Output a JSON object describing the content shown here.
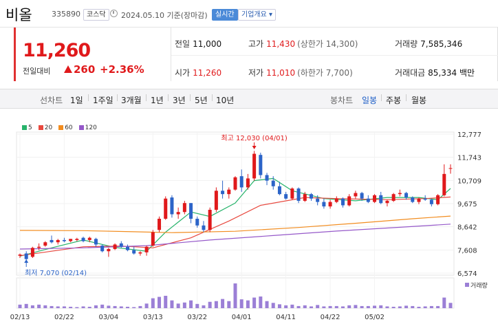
{
  "header": {
    "name": "비올",
    "code": "335890",
    "market": "코스닥",
    "date_text": "2024.05.10 기준(장마감)",
    "realtime": "실시간",
    "company": "기업개요"
  },
  "price": {
    "current": "11,260",
    "change_label": "전일대비",
    "change": "260",
    "change_pct": "+2.36%"
  },
  "stats": {
    "prev_close": {
      "label": "전일",
      "value": "11,000"
    },
    "high": {
      "label": "고가",
      "value": "11,430",
      "sub": "(상한가 14,300)"
    },
    "volume": {
      "label": "거래량",
      "value": "7,585,346"
    },
    "open": {
      "label": "시가",
      "value": "11,260"
    },
    "low": {
      "label": "저가",
      "value": "11,010",
      "sub": "(하한가 7,700)"
    },
    "amount": {
      "label": "거래대금",
      "value": "85,334 백만"
    }
  },
  "toolbar": {
    "line_label": "선차트",
    "line_items": [
      "1일",
      "1주일",
      "3개월",
      "1년",
      "3년",
      "5년",
      "10년"
    ],
    "candle_label": "봉차트",
    "candle_items": [
      "일봉",
      "주봉",
      "월봉"
    ],
    "selected": "일봉"
  },
  "colors": {
    "up": "#e0191b",
    "down": "#2c64c8",
    "ma5": "#27b36b",
    "ma20": "#e8483e",
    "ma60": "#f28c1e",
    "ma120": "#9558c9",
    "volume": "#9b7fd6"
  },
  "chart_data": {
    "type": "candlestick",
    "moving_averages": [
      {
        "name": "5"
      },
      {
        "name": "20"
      },
      {
        "name": "60"
      },
      {
        "name": "120"
      }
    ],
    "y_ticks": [
      "12,777",
      "11,743",
      "10,709",
      "9,675",
      "8,642",
      "7,608",
      "6,574"
    ],
    "x_ticks": [
      "02/13",
      "02/22",
      "03/04",
      "03/13",
      "03/22",
      "04/01",
      "04/11",
      "04/22",
      "05/02"
    ],
    "ylim": [
      6574,
      12777
    ],
    "annotations": {
      "high": "최고 12,030 (04/01)",
      "low": "최저 7,070 (02/14)"
    },
    "volume_label": "거래량",
    "candles": [
      [
        7350,
        7450,
        7250,
        7400
      ],
      [
        7450,
        7550,
        7070,
        7200
      ],
      [
        7300,
        7750,
        7250,
        7700
      ],
      [
        7700,
        7900,
        7600,
        7750
      ],
      [
        7800,
        8000,
        7750,
        7950
      ],
      [
        8050,
        8250,
        7900,
        7950
      ],
      [
        7950,
        8100,
        7850,
        8050
      ],
      [
        8050,
        8150,
        7950,
        8000
      ],
      [
        8000,
        8100,
        7950,
        8100
      ],
      [
        8050,
        8150,
        8000,
        8100
      ],
      [
        8150,
        8200,
        7950,
        8000
      ],
      [
        8050,
        8200,
        7950,
        8150
      ],
      [
        8100,
        8150,
        7750,
        7850
      ],
      [
        7800,
        7850,
        7500,
        7550
      ],
      [
        7550,
        7700,
        7300,
        7650
      ],
      [
        7650,
        7900,
        7600,
        7850
      ],
      [
        7900,
        8000,
        7700,
        7750
      ],
      [
        7750,
        7850,
        7550,
        7600
      ],
      [
        7600,
        7750,
        7400,
        7450
      ],
      [
        7450,
        7550,
        7350,
        7500
      ],
      [
        7500,
        7800,
        7350,
        7750
      ],
      [
        7800,
        8500,
        7750,
        8400
      ],
      [
        8500,
        9100,
        8400,
        9000
      ],
      [
        9000,
        10000,
        8950,
        9900
      ],
      [
        9950,
        10050,
        9050,
        9200
      ],
      [
        9200,
        9500,
        9000,
        9300
      ],
      [
        9300,
        9800,
        9200,
        9700
      ],
      [
        9700,
        9700,
        8800,
        9000
      ],
      [
        9000,
        9100,
        8600,
        8700
      ],
      [
        8700,
        8900,
        8400,
        8500
      ],
      [
        8500,
        9500,
        8400,
        9400
      ],
      [
        9400,
        10400,
        9300,
        10250
      ],
      [
        10250,
        10700,
        9900,
        10100
      ],
      [
        10100,
        10400,
        9900,
        10300
      ],
      [
        10300,
        10900,
        10250,
        10850
      ],
      [
        10900,
        11200,
        10200,
        10400
      ],
      [
        10400,
        11000,
        10300,
        10800
      ],
      [
        10800,
        12030,
        10700,
        11900
      ],
      [
        11850,
        11950,
        10800,
        10950
      ],
      [
        10950,
        11050,
        10500,
        10700
      ],
      [
        10700,
        10900,
        10300,
        10450
      ],
      [
        10450,
        10650,
        10050,
        10100
      ],
      [
        10100,
        10200,
        9850,
        9900
      ],
      [
        9900,
        10400,
        9850,
        10350
      ],
      [
        10350,
        10400,
        9700,
        9800
      ],
      [
        9800,
        10200,
        9750,
        10100
      ],
      [
        10100,
        10150,
        9800,
        9900
      ],
      [
        9900,
        10050,
        9600,
        9750
      ],
      [
        9750,
        9900,
        9450,
        9550
      ],
      [
        9550,
        9850,
        9450,
        9750
      ],
      [
        9750,
        10000,
        9700,
        9900
      ],
      [
        9900,
        9950,
        9500,
        9600
      ],
      [
        9600,
        10100,
        9550,
        10000
      ],
      [
        10000,
        10250,
        9900,
        10150
      ],
      [
        10150,
        10200,
        9800,
        9900
      ],
      [
        9900,
        10050,
        9700,
        9750
      ],
      [
        9750,
        10100,
        9700,
        10050
      ],
      [
        10050,
        10200,
        9650,
        9700
      ],
      [
        9700,
        9850,
        9550,
        9800
      ],
      [
        9800,
        10150,
        9750,
        10100
      ],
      [
        10100,
        10300,
        10000,
        10150
      ],
      [
        10150,
        10200,
        9850,
        9950
      ],
      [
        9950,
        10000,
        9700,
        9750
      ],
      [
        9750,
        9950,
        9650,
        9900
      ],
      [
        9900,
        10050,
        9800,
        9850
      ],
      [
        9850,
        9900,
        9550,
        9650
      ],
      [
        9650,
        10100,
        9600,
        10050
      ],
      [
        10050,
        11430,
        10000,
        11000
      ],
      [
        11260,
        11430,
        11010,
        11260
      ]
    ],
    "ma5": [
      [
        0,
        7330
      ],
      [
        5,
        7700
      ],
      [
        10,
        8050
      ],
      [
        15,
        7720
      ],
      [
        20,
        7550
      ],
      [
        23,
        8400
      ],
      [
        27,
        9300
      ],
      [
        30,
        9100
      ],
      [
        34,
        9700
      ],
      [
        37,
        10700
      ],
      [
        40,
        10800
      ],
      [
        43,
        10250
      ],
      [
        48,
        9900
      ],
      [
        53,
        9800
      ],
      [
        58,
        9950
      ],
      [
        63,
        9950
      ],
      [
        66,
        9850
      ],
      [
        68,
        10350
      ]
    ],
    "ma20": [
      [
        0,
        7350
      ],
      [
        10,
        7750
      ],
      [
        16,
        7780
      ],
      [
        21,
        7700
      ],
      [
        27,
        8150
      ],
      [
        33,
        8900
      ],
      [
        38,
        9600
      ],
      [
        45,
        9950
      ],
      [
        50,
        9900
      ],
      [
        58,
        9850
      ],
      [
        64,
        9900
      ],
      [
        68,
        9970
      ]
    ],
    "ma60": [
      [
        0,
        8480
      ],
      [
        10,
        8470
      ],
      [
        18,
        8420
      ],
      [
        24,
        8380
      ],
      [
        34,
        8440
      ],
      [
        44,
        8610
      ],
      [
        54,
        8820
      ],
      [
        62,
        9000
      ],
      [
        68,
        9120
      ]
    ],
    "ma120": [
      [
        0,
        7650
      ],
      [
        10,
        7700
      ],
      [
        20,
        7800
      ],
      [
        30,
        8050
      ],
      [
        40,
        8250
      ],
      [
        50,
        8450
      ],
      [
        60,
        8620
      ],
      [
        68,
        8760
      ]
    ],
    "volume": [
      1.0,
      1.2,
      0.8,
      1.0,
      0.8,
      0.6,
      0.5,
      0.5,
      0.4,
      0.3,
      0.5,
      0.4,
      0.8,
      1.0,
      0.7,
      0.6,
      0.5,
      0.4,
      0.3,
      0.6,
      1.3,
      2.8,
      3.2,
      3.5,
      2.2,
      1.3,
      1.6,
      2.2,
      1.2,
      0.8,
      1.8,
      2.0,
      2.6,
      2.0,
      7.0,
      2.5,
      2.2,
      3.0,
      3.3,
      2.0,
      1.5,
      1.1,
      0.8,
      1.0,
      0.6,
      0.8,
      0.5,
      0.9,
      0.5,
      0.6,
      0.6,
      0.5,
      0.8,
      0.9,
      0.6,
      0.6,
      0.7,
      0.8,
      0.5,
      0.4,
      0.5,
      0.7,
      0.6,
      0.4,
      0.5,
      0.6,
      0.6,
      3.0,
      1.5
    ]
  }
}
